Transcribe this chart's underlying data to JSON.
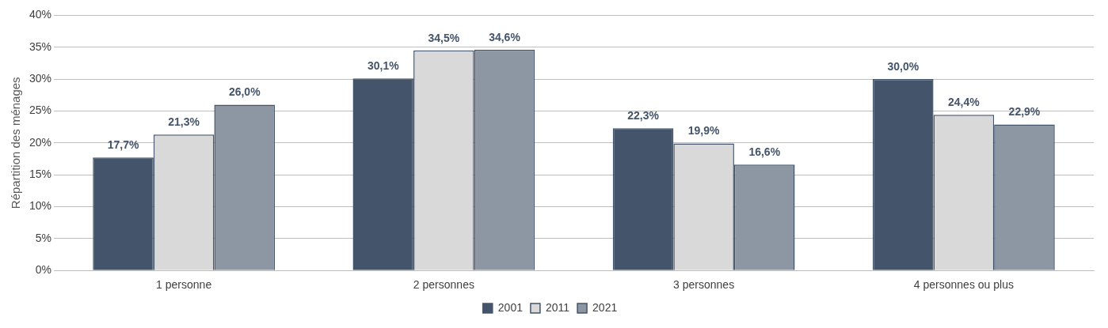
{
  "chart_data": {
    "type": "bar",
    "ylabel": "Répartition des ménages",
    "categories": [
      "1 personne",
      "2 personnes",
      "3 personnes",
      "4 personnes ou plus"
    ],
    "series": [
      {
        "name": "2001",
        "color": "#44546a",
        "values": [
          17.7,
          30.1,
          22.3,
          30.0
        ],
        "value_labels": [
          "17,7%",
          "30,1%",
          "22,3%",
          "30,0%"
        ]
      },
      {
        "name": "2011",
        "color": "#d9d9d9",
        "values": [
          21.3,
          34.5,
          19.9,
          24.4
        ],
        "value_labels": [
          "21,3%",
          "34,5%",
          "19,9%",
          "24,4%"
        ]
      },
      {
        "name": "2021",
        "color": "#8d97a4",
        "values": [
          26.0,
          34.6,
          16.6,
          22.9
        ],
        "value_labels": [
          "26,0%",
          "34,6%",
          "16,6%",
          "22,9%"
        ]
      }
    ],
    "ylim": [
      0,
      40
    ],
    "yticks": [
      {
        "value": 0,
        "label": "0%"
      },
      {
        "value": 5,
        "label": "5%"
      },
      {
        "value": 10,
        "label": "10%"
      },
      {
        "value": 15,
        "label": "15%"
      },
      {
        "value": 20,
        "label": "20%"
      },
      {
        "value": 25,
        "label": "25%"
      },
      {
        "value": 30,
        "label": "30%"
      },
      {
        "value": 35,
        "label": "35%"
      },
      {
        "value": 40,
        "label": "40%"
      }
    ],
    "grid": "y",
    "legend": "bottom"
  }
}
